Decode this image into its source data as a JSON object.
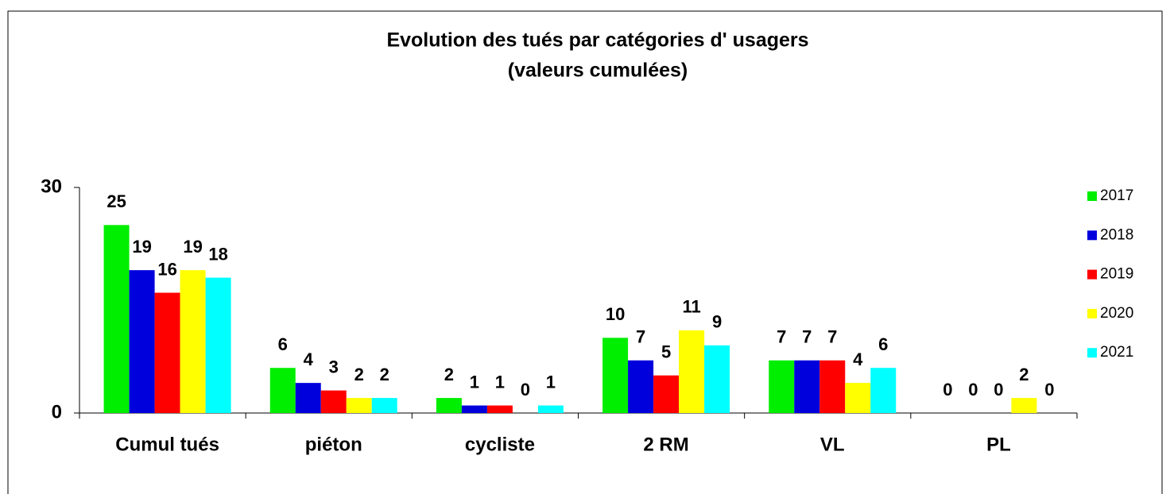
{
  "chart_data": {
    "type": "bar",
    "title": "Evolution des tués par catégories d' usagers",
    "subtitle": "(valeurs cumulées)",
    "categories": [
      "Cumul tués",
      "piéton",
      "cycliste",
      "2 RM",
      "VL",
      "PL"
    ],
    "series": [
      {
        "name": "2017",
        "color": "#00ee00",
        "values": [
          25,
          6,
          2,
          10,
          7,
          0
        ]
      },
      {
        "name": "2018",
        "color": "#0000dd",
        "values": [
          19,
          4,
          1,
          7,
          7,
          0
        ]
      },
      {
        "name": "2019",
        "color": "#ff0000",
        "values": [
          16,
          3,
          1,
          5,
          7,
          0
        ]
      },
      {
        "name": "2020",
        "color": "#ffff00",
        "values": [
          19,
          2,
          0,
          11,
          4,
          2
        ]
      },
      {
        "name": "2021",
        "color": "#00ffff",
        "values": [
          18,
          2,
          1,
          9,
          6,
          0
        ]
      }
    ],
    "ylim": [
      0,
      30
    ],
    "yticks": [
      0,
      30
    ],
    "grid": false,
    "legend": "right"
  }
}
